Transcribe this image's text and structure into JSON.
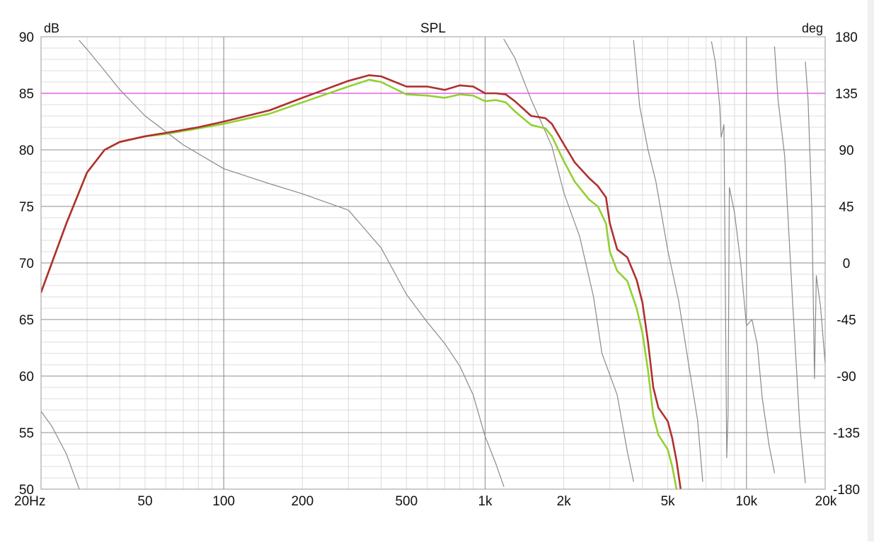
{
  "chart_data": {
    "type": "line",
    "title": "SPL",
    "x_scale": "log",
    "xlim": [
      20,
      20000
    ],
    "ylim": [
      50,
      90
    ],
    "y2lim": [
      -180,
      180
    ],
    "y_unit_label": "dB",
    "y2_unit_label": "deg",
    "grid": true,
    "x_ticks": [
      {
        "value": 20,
        "label": "20Hz"
      },
      {
        "value": 50,
        "label": "50"
      },
      {
        "value": 100,
        "label": "100"
      },
      {
        "value": 200,
        "label": "200"
      },
      {
        "value": 500,
        "label": "500"
      },
      {
        "value": 1000,
        "label": "1k"
      },
      {
        "value": 2000,
        "label": "2k"
      },
      {
        "value": 5000,
        "label": "5k"
      },
      {
        "value": 10000,
        "label": "10k"
      },
      {
        "value": 20000,
        "label": "20k"
      }
    ],
    "y_ticks": [
      {
        "value": 90,
        "label": "90"
      },
      {
        "value": 85,
        "label": "85"
      },
      {
        "value": 80,
        "label": "80"
      },
      {
        "value": 75,
        "label": "75"
      },
      {
        "value": 70,
        "label": "70"
      },
      {
        "value": 65,
        "label": "65"
      },
      {
        "value": 60,
        "label": "60"
      },
      {
        "value": 55,
        "label": "55"
      },
      {
        "value": 50,
        "label": "50"
      }
    ],
    "y2_ticks": [
      {
        "value": 180,
        "label": "180"
      },
      {
        "value": 135,
        "label": "135"
      },
      {
        "value": 90,
        "label": "90"
      },
      {
        "value": 45,
        "label": "45"
      },
      {
        "value": 0,
        "label": "0"
      },
      {
        "value": -45,
        "label": "-45"
      },
      {
        "value": -90,
        "label": "-90"
      },
      {
        "value": -135,
        "label": "-135"
      },
      {
        "value": -180,
        "label": "-180"
      }
    ],
    "reference_line": {
      "axis": "y",
      "value": 85,
      "color": "#e040e0"
    },
    "series": [
      {
        "axis": "y",
        "color": "#b03030",
        "points": [
          [
            20,
            67.4
          ],
          [
            25,
            73.5
          ],
          [
            30,
            78.0
          ],
          [
            35,
            80.0
          ],
          [
            40,
            80.7
          ],
          [
            50,
            81.2
          ],
          [
            60,
            81.5
          ],
          [
            80,
            82.0
          ],
          [
            100,
            82.5
          ],
          [
            150,
            83.5
          ],
          [
            200,
            84.6
          ],
          [
            300,
            86.1
          ],
          [
            360,
            86.6
          ],
          [
            400,
            86.5
          ],
          [
            500,
            85.6
          ],
          [
            600,
            85.6
          ],
          [
            700,
            85.3
          ],
          [
            800,
            85.7
          ],
          [
            900,
            85.6
          ],
          [
            1000,
            85.0
          ],
          [
            1100,
            85.0
          ],
          [
            1200,
            84.9
          ],
          [
            1300,
            84.3
          ],
          [
            1500,
            83.0
          ],
          [
            1700,
            82.8
          ],
          [
            1800,
            82.3
          ],
          [
            2000,
            80.5
          ],
          [
            2200,
            78.9
          ],
          [
            2500,
            77.5
          ],
          [
            2700,
            76.8
          ],
          [
            2900,
            75.8
          ],
          [
            3000,
            73.5
          ],
          [
            3200,
            71.2
          ],
          [
            3500,
            70.5
          ],
          [
            3800,
            68.5
          ],
          [
            4000,
            66.5
          ],
          [
            4200,
            63.0
          ],
          [
            4400,
            59.0
          ],
          [
            4600,
            57.2
          ],
          [
            5000,
            56.0
          ],
          [
            5200,
            54.5
          ],
          [
            5400,
            52.5
          ],
          [
            5600,
            50.0
          ]
        ]
      },
      {
        "axis": "y",
        "color": "#94d032",
        "points": [
          [
            20,
            67.4
          ],
          [
            25,
            73.5
          ],
          [
            30,
            78.0
          ],
          [
            35,
            80.0
          ],
          [
            40,
            80.7
          ],
          [
            50,
            81.2
          ],
          [
            60,
            81.4
          ],
          [
            80,
            81.9
          ],
          [
            100,
            82.3
          ],
          [
            150,
            83.2
          ],
          [
            200,
            84.2
          ],
          [
            300,
            85.6
          ],
          [
            360,
            86.2
          ],
          [
            400,
            86.0
          ],
          [
            500,
            84.9
          ],
          [
            600,
            84.8
          ],
          [
            700,
            84.6
          ],
          [
            800,
            84.9
          ],
          [
            900,
            84.8
          ],
          [
            1000,
            84.3
          ],
          [
            1100,
            84.4
          ],
          [
            1200,
            84.2
          ],
          [
            1300,
            83.4
          ],
          [
            1500,
            82.2
          ],
          [
            1700,
            81.9
          ],
          [
            1800,
            81.2
          ],
          [
            2000,
            79.0
          ],
          [
            2200,
            77.2
          ],
          [
            2500,
            75.6
          ],
          [
            2700,
            75.0
          ],
          [
            2900,
            73.5
          ],
          [
            3000,
            71.0
          ],
          [
            3200,
            69.3
          ],
          [
            3500,
            68.4
          ],
          [
            3800,
            66.0
          ],
          [
            4000,
            63.8
          ],
          [
            4200,
            60.5
          ],
          [
            4400,
            56.5
          ],
          [
            4600,
            54.8
          ],
          [
            5000,
            53.5
          ],
          [
            5200,
            52.0
          ],
          [
            5400,
            50.0
          ]
        ]
      },
      {
        "axis": "y2",
        "color": "#8a8a8a",
        "segments": [
          [
            [
              20,
              -118
            ],
            [
              22,
              -130
            ],
            [
              25,
              -152
            ],
            [
              28,
              -180
            ]
          ],
          [
            [
              28,
              177
            ],
            [
              30,
              170
            ],
            [
              35,
              153
            ],
            [
              40,
              138
            ],
            [
              50,
              117
            ],
            [
              70,
              94
            ],
            [
              100,
              75
            ],
            [
              150,
              63
            ],
            [
              200,
              55
            ],
            [
              300,
              42
            ],
            [
              400,
              12
            ],
            [
              500,
              -25
            ],
            [
              600,
              -47
            ],
            [
              700,
              -64
            ],
            [
              800,
              -82
            ],
            [
              900,
              -105
            ],
            [
              1000,
              -138
            ],
            [
              1100,
              -160
            ],
            [
              1180,
              -178
            ]
          ],
          [
            [
              1180,
              178
            ],
            [
              1300,
              163
            ],
            [
              1500,
              130
            ],
            [
              1800,
              93
            ],
            [
              2000,
              56
            ],
            [
              2300,
              21
            ],
            [
              2600,
              -27
            ],
            [
              2800,
              -72
            ],
            [
              3200,
              -105
            ],
            [
              3500,
              -150
            ],
            [
              3700,
              -174
            ]
          ],
          [
            [
              3700,
              177
            ],
            [
              3900,
              125
            ],
            [
              4200,
              90
            ],
            [
              4500,
              65
            ],
            [
              5000,
              10
            ],
            [
              5500,
              -30
            ],
            [
              6000,
              -80
            ],
            [
              6500,
              -125
            ],
            [
              6800,
              -174
            ]
          ],
          [
            [
              7350,
              176
            ],
            [
              7600,
              160
            ],
            [
              7900,
              125
            ],
            [
              8000,
              100
            ],
            [
              8200,
              110
            ],
            [
              8400,
              -155
            ],
            [
              8500,
              -120
            ],
            [
              8600,
              60
            ],
            [
              9000,
              40
            ],
            [
              9500,
              0
            ],
            [
              10000,
              -50
            ],
            [
              10500,
              -45
            ],
            [
              11000,
              -65
            ],
            [
              11500,
              -108
            ],
            [
              12200,
              -145
            ],
            [
              12800,
              -167
            ]
          ],
          [
            [
              12800,
              172
            ],
            [
              13200,
              130
            ],
            [
              14000,
              85
            ],
            [
              15000,
              -30
            ],
            [
              16000,
              -130
            ],
            [
              16800,
              -175
            ]
          ],
          [
            [
              16800,
              160
            ],
            [
              17200,
              130
            ],
            [
              17800,
              40
            ],
            [
              18200,
              -92
            ],
            [
              18500,
              -10
            ],
            [
              19200,
              -35
            ],
            [
              20000,
              -80
            ]
          ]
        ]
      }
    ]
  }
}
